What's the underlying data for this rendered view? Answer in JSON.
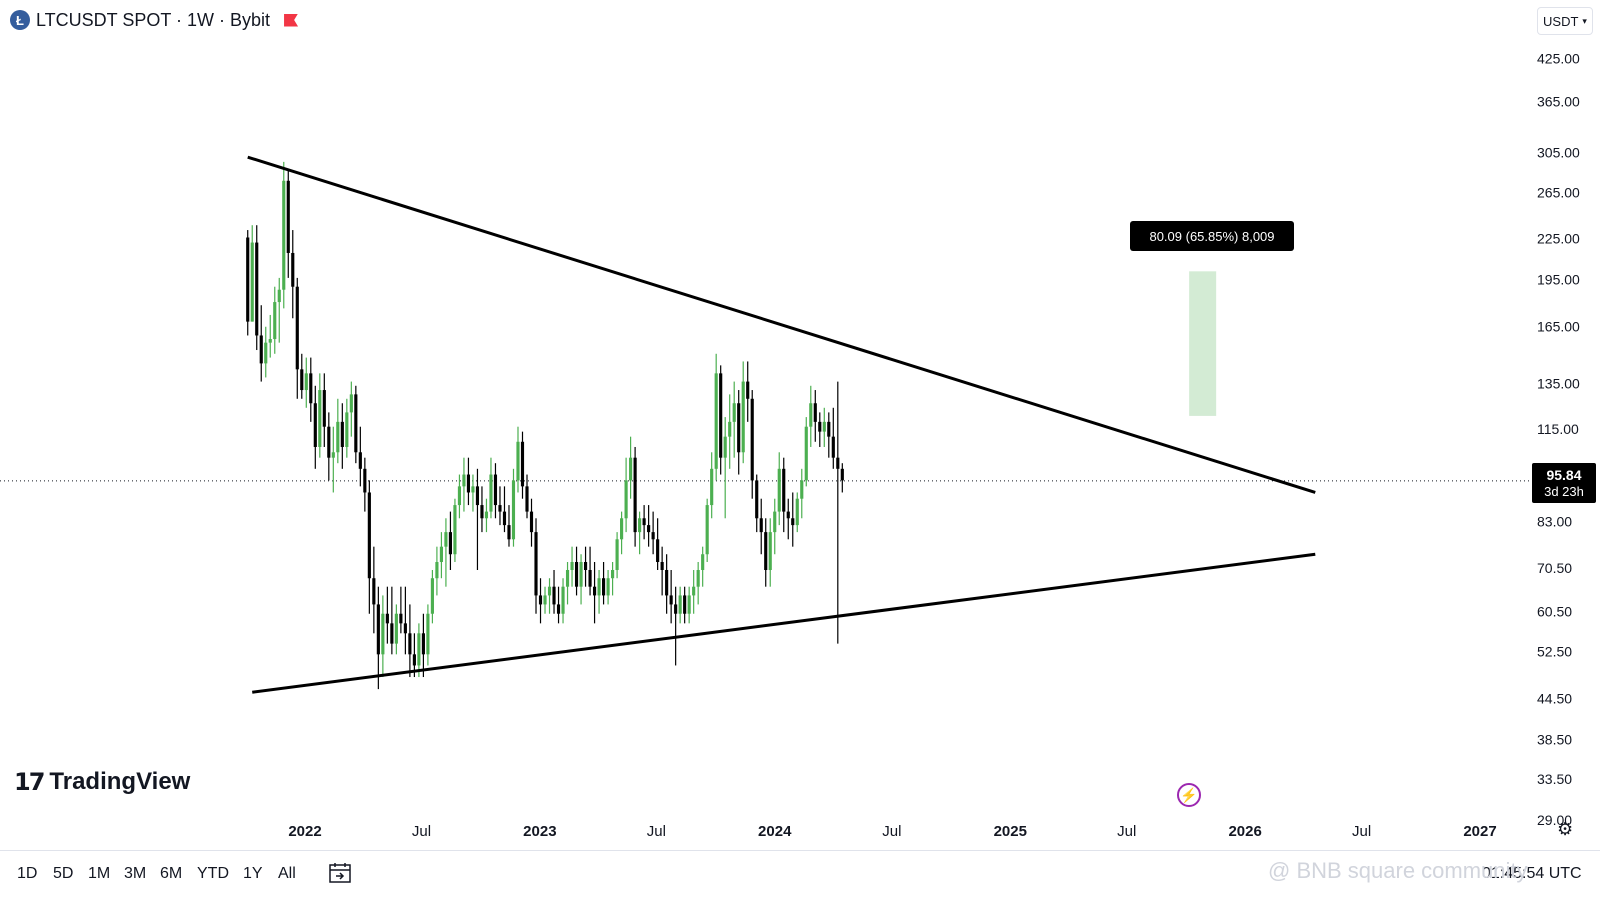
{
  "header": {
    "coin_letter": "Ł",
    "title": "LTCUSDT SPOT · 1W · Bybit",
    "currency": "USDT"
  },
  "chart_data": {
    "type": "candlestick",
    "symbol": "LTCUSDT",
    "interval": "1W",
    "exchange": "Bybit",
    "y_scale": "log",
    "y_ticks": [
      "425.00",
      "365.00",
      "305.00",
      "265.00",
      "225.00",
      "195.00",
      "165.00",
      "135.00",
      "115.00",
      "83.00",
      "70.50",
      "60.50",
      "52.50",
      "44.50",
      "38.50",
      "33.50",
      "29.00"
    ],
    "x_ticks": [
      "2022",
      "Jul",
      "2023",
      "Jul",
      "2024",
      "Jul",
      "2025",
      "Jul",
      "2026",
      "Jul",
      "2027"
    ],
    "ylim": [
      29,
      430
    ],
    "current_price": "95.84",
    "countdown": "3d 23h",
    "up_color": "#4caf50",
    "down_color": "#000000",
    "bar_start": "2021-10-04",
    "candles": [
      [
        226,
        232,
        160,
        168
      ],
      [
        168,
        236,
        168,
        222
      ],
      [
        222,
        236,
        152,
        160
      ],
      [
        160,
        178,
        136,
        145
      ],
      [
        145,
        165,
        138,
        156
      ],
      [
        156,
        172,
        148,
        158
      ],
      [
        158,
        190,
        150,
        180
      ],
      [
        180,
        196,
        156,
        188
      ],
      [
        188,
        295,
        176,
        276
      ],
      [
        276,
        286,
        196,
        214
      ],
      [
        214,
        232,
        170,
        190
      ],
      [
        190,
        196,
        128,
        142
      ],
      [
        142,
        150,
        128,
        132
      ],
      [
        132,
        148,
        124,
        140
      ],
      [
        140,
        148,
        118,
        126
      ],
      [
        126,
        134,
        100,
        108
      ],
      [
        108,
        140,
        104,
        132
      ],
      [
        132,
        140,
        108,
        116
      ],
      [
        116,
        122,
        96,
        104
      ],
      [
        104,
        116,
        92,
        106
      ],
      [
        106,
        128,
        102,
        118
      ],
      [
        118,
        126,
        100,
        108
      ],
      [
        108,
        128,
        104,
        122
      ],
      [
        122,
        136,
        112,
        130
      ],
      [
        130,
        134,
        102,
        106
      ],
      [
        106,
        116,
        94,
        100
      ],
      [
        100,
        104,
        86,
        92
      ],
      [
        92,
        96,
        60,
        68
      ],
      [
        68,
        76,
        56,
        62
      ],
      [
        62,
        66,
        46,
        52
      ],
      [
        52,
        64,
        48,
        60
      ],
      [
        60,
        66,
        54,
        58
      ],
      [
        58,
        66,
        52,
        54
      ],
      [
        54,
        62,
        52,
        60
      ],
      [
        60,
        66,
        56,
        58
      ],
      [
        58,
        66,
        52,
        56
      ],
      [
        56,
        62,
        48,
        52
      ],
      [
        52,
        56,
        48,
        50
      ],
      [
        50,
        58,
        48,
        56
      ],
      [
        56,
        60,
        48,
        52
      ],
      [
        52,
        62,
        50,
        60
      ],
      [
        60,
        70,
        58,
        68
      ],
      [
        68,
        76,
        64,
        72
      ],
      [
        72,
        80,
        68,
        76
      ],
      [
        76,
        84,
        66,
        80
      ],
      [
        80,
        86,
        70,
        74
      ],
      [
        74,
        90,
        72,
        88
      ],
      [
        88,
        98,
        84,
        94
      ],
      [
        94,
        104,
        86,
        98
      ],
      [
        98,
        104,
        88,
        92
      ],
      [
        92,
        98,
        86,
        94
      ],
      [
        94,
        100,
        70,
        88
      ],
      [
        88,
        94,
        80,
        84
      ],
      [
        84,
        90,
        80,
        86
      ],
      [
        86,
        104,
        84,
        98
      ],
      [
        98,
        102,
        84,
        88
      ],
      [
        88,
        94,
        82,
        86
      ],
      [
        86,
        94,
        80,
        82
      ],
      [
        82,
        88,
        76,
        78
      ],
      [
        78,
        100,
        76,
        96
      ],
      [
        96,
        116,
        92,
        110
      ],
      [
        110,
        114,
        90,
        94
      ],
      [
        94,
        98,
        84,
        86
      ],
      [
        86,
        90,
        76,
        80
      ],
      [
        80,
        84,
        60,
        64
      ],
      [
        64,
        68,
        58,
        62
      ],
      [
        62,
        66,
        60,
        64
      ],
      [
        64,
        68,
        60,
        66
      ],
      [
        66,
        70,
        60,
        62
      ],
      [
        62,
        66,
        58,
        60
      ],
      [
        60,
        68,
        58,
        66
      ],
      [
        66,
        72,
        62,
        70
      ],
      [
        70,
        76,
        66,
        72
      ],
      [
        72,
        76,
        64,
        66
      ],
      [
        66,
        74,
        62,
        72
      ],
      [
        72,
        76,
        66,
        70
      ],
      [
        70,
        76,
        64,
        66
      ],
      [
        66,
        72,
        58,
        64
      ],
      [
        64,
        70,
        60,
        68
      ],
      [
        68,
        72,
        62,
        64
      ],
      [
        64,
        70,
        62,
        68
      ],
      [
        68,
        72,
        64,
        70
      ],
      [
        70,
        80,
        68,
        78
      ],
      [
        78,
        86,
        74,
        84
      ],
      [
        84,
        104,
        80,
        96
      ],
      [
        96,
        112,
        90,
        104
      ],
      [
        104,
        108,
        76,
        80
      ],
      [
        80,
        86,
        74,
        84
      ],
      [
        84,
        88,
        78,
        82
      ],
      [
        82,
        88,
        76,
        80
      ],
      [
        80,
        86,
        74,
        78
      ],
      [
        78,
        84,
        70,
        72
      ],
      [
        72,
        76,
        64,
        70
      ],
      [
        70,
        74,
        60,
        64
      ],
      [
        64,
        70,
        58,
        62
      ],
      [
        62,
        66,
        50,
        60
      ],
      [
        60,
        66,
        58,
        64
      ],
      [
        64,
        66,
        58,
        60
      ],
      [
        60,
        66,
        58,
        64
      ],
      [
        64,
        70,
        60,
        66
      ],
      [
        66,
        72,
        62,
        70
      ],
      [
        70,
        76,
        66,
        74
      ],
      [
        74,
        90,
        72,
        88
      ],
      [
        88,
        106,
        84,
        100
      ],
      [
        100,
        150,
        96,
        140
      ],
      [
        140,
        144,
        98,
        104
      ],
      [
        104,
        120,
        84,
        112
      ],
      [
        112,
        130,
        100,
        118
      ],
      [
        118,
        136,
        104,
        126
      ],
      [
        126,
        132,
        98,
        106
      ],
      [
        106,
        146,
        102,
        136
      ],
      [
        136,
        146,
        118,
        128
      ],
      [
        128,
        132,
        90,
        96
      ],
      [
        96,
        98,
        80,
        84
      ],
      [
        84,
        90,
        74,
        80
      ],
      [
        80,
        84,
        66,
        70
      ],
      [
        70,
        84,
        66,
        80
      ],
      [
        80,
        90,
        74,
        86
      ],
      [
        86,
        106,
        82,
        100
      ],
      [
        100,
        104,
        80,
        86
      ],
      [
        86,
        90,
        78,
        84
      ],
      [
        84,
        92,
        76,
        82
      ],
      [
        82,
        92,
        80,
        90
      ],
      [
        90,
        100,
        84,
        96
      ],
      [
        96,
        120,
        94,
        116
      ],
      [
        116,
        134,
        108,
        126
      ],
      [
        126,
        132,
        110,
        118
      ],
      [
        118,
        122,
        108,
        114
      ],
      [
        114,
        124,
        108,
        118
      ],
      [
        118,
        122,
        104,
        112
      ],
      [
        112,
        124,
        100,
        104
      ],
      [
        104,
        136,
        54,
        100
      ],
      [
        100,
        102,
        92,
        96
      ]
    ],
    "trendlines": [
      {
        "name": "resistance",
        "from": {
          "x": "2021-10-04",
          "y": 300
        },
        "to": {
          "x": "2026-04-20",
          "y": 92
        }
      },
      {
        "name": "support",
        "from": {
          "x": "2021-10-11",
          "y": 45.5
        },
        "to": {
          "x": "2026-04-20",
          "y": 74
        }
      }
    ],
    "measure_box": {
      "from_x": "2025-10-06",
      "to_x": "2025-11-17",
      "y_low": 120.5,
      "y_high": 200.6
    },
    "measurement_label": "80.09 (65.85%) 8,009"
  },
  "timeframes": [
    "1D",
    "5D",
    "1M",
    "3M",
    "6M",
    "YTD",
    "1Y",
    "All"
  ],
  "clock": "01:45:54 UTC",
  "watermark": "TradingView",
  "overlay_text": "@ BNB square community"
}
